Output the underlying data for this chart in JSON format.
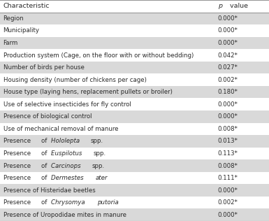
{
  "header": [
    "Characteristic",
    "p value"
  ],
  "rows": [
    [
      "Region",
      "0.000*"
    ],
    [
      "Municipality",
      "0.000*"
    ],
    [
      "Farm",
      "0.000*"
    ],
    [
      "Production system (Cage, on the floor with or without bedding)",
      "0.042*"
    ],
    [
      "Number of birds per house",
      "0.027*"
    ],
    [
      "Housing density (number of chickens per cage)",
      "0.002*"
    ],
    [
      "House type (laying hens, replacement pullets or broiler)",
      "0.180*"
    ],
    [
      "Use of selective insecticides for fly control",
      "0.000*"
    ],
    [
      "Presence of biological control",
      "0.000*"
    ],
    [
      "Use of mechanical removal of manure",
      "0.008*"
    ],
    [
      "Presence of Hololepta spp.",
      "0.013*"
    ],
    [
      "Presence of Euspilotus spp.",
      "0.113*"
    ],
    [
      "Presence of Carcinops spp.",
      "0.008*"
    ],
    [
      "Presence of Dermestes ater",
      "0.111*"
    ],
    [
      "Presence of Histeridae beetles",
      "0.000*"
    ],
    [
      "Presence of Chrysomya putoria",
      "0.002*"
    ],
    [
      "Presence of Uropodidae mites in manure",
      "0.000*"
    ]
  ],
  "italic_words": {
    "10": [
      "Hololepta"
    ],
    "11": [
      "Euspilotus"
    ],
    "12": [
      "Carcinops"
    ],
    "13": [
      "Dermestes",
      "ater"
    ],
    "15": [
      "Chrysomya",
      "putoria"
    ]
  },
  "shaded_rows": [
    0,
    2,
    4,
    6,
    8,
    10,
    12,
    14,
    16
  ],
  "shade_color": "#d9d9d9",
  "white_color": "#ffffff",
  "text_color": "#2b2b2b",
  "border_color": "#999999",
  "fig_bg": "#ffffff",
  "col_split": 0.8,
  "header_fontsize": 6.8,
  "row_fontsize": 6.2
}
